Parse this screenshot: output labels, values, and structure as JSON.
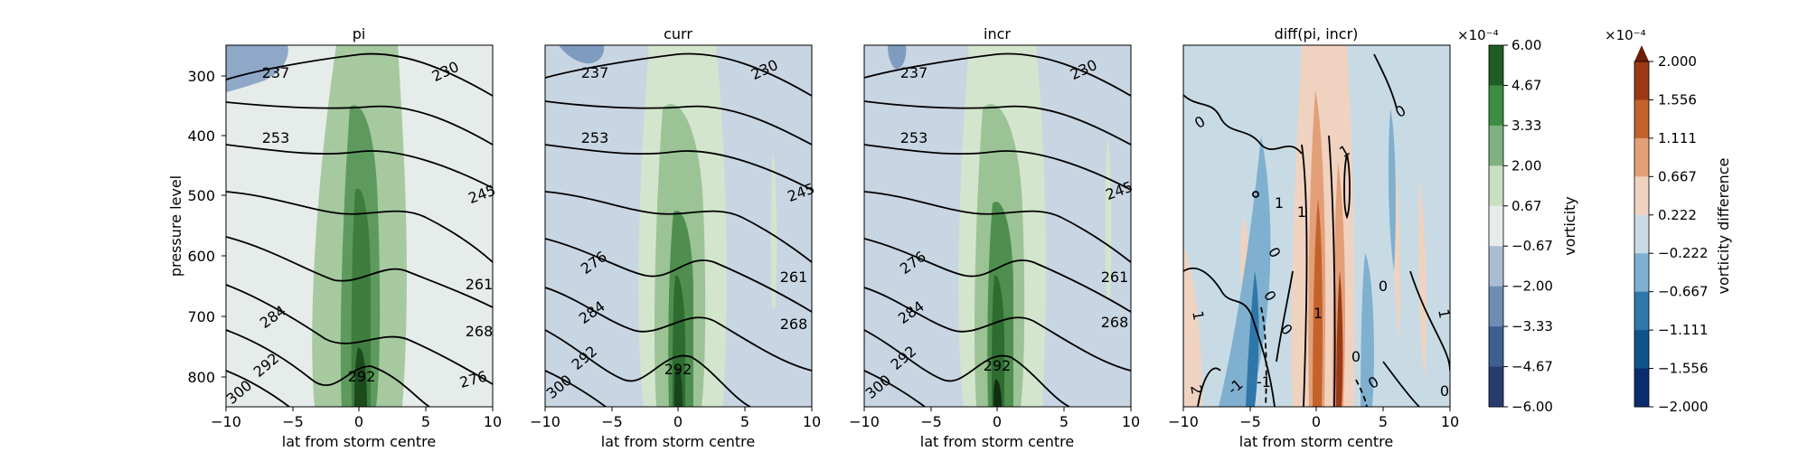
{
  "chart_data": [
    {
      "type": "contour",
      "title": "pi",
      "xlabel": "lat from storm centre",
      "ylabel": "pressure level",
      "xlim": [
        -10,
        10
      ],
      "ylim": [
        850,
        250
      ],
      "x_ticks": [
        "−10",
        "−5",
        "0",
        "5",
        "10"
      ],
      "y_ticks": [
        "300",
        "400",
        "500",
        "600",
        "700",
        "800"
      ],
      "background_level": "-0.67 to 0.67",
      "contour_labels": [
        "237",
        "230",
        "253",
        "245",
        "261",
        "276",
        "268",
        "284",
        "292",
        "300",
        "292",
        "276"
      ]
    },
    {
      "type": "contour",
      "title": "curr",
      "xlabel": "lat from storm centre",
      "xlim": [
        -10,
        10
      ],
      "ylim": [
        850,
        250
      ],
      "x_ticks": [
        "−10",
        "−5",
        "0",
        "5",
        "10"
      ],
      "background_level": "-2.00 to -0.67",
      "contour_labels": [
        "237",
        "230",
        "253",
        "245",
        "261",
        "276",
        "268",
        "284",
        "292",
        "300",
        "292"
      ]
    },
    {
      "type": "contour",
      "title": "incr",
      "xlabel": "lat from storm centre",
      "xlim": [
        -10,
        10
      ],
      "ylim": [
        850,
        250
      ],
      "x_ticks": [
        "−10",
        "−5",
        "0",
        "5",
        "10"
      ],
      "background_level": "-2.00 to -0.67",
      "contour_labels": [
        "237",
        "230",
        "253",
        "245",
        "261",
        "276",
        "268",
        "284",
        "292",
        "300",
        "292"
      ]
    },
    {
      "type": "contour",
      "title": "diff(pi, incr)",
      "xlabel": "lat from storm centre",
      "xlim": [
        -10,
        10
      ],
      "ylim": [
        850,
        250
      ],
      "x_ticks": [
        "−10",
        "−5",
        "0",
        "5",
        "10"
      ],
      "contour_labels": [
        "0",
        "0",
        "1",
        "0",
        "1",
        "1",
        "0",
        "0",
        "0",
        "0",
        "1",
        "-1",
        "-1",
        "0",
        "0",
        "2",
        "1",
        "1"
      ]
    }
  ],
  "colorbars": {
    "vorticity": {
      "label": "vorticity",
      "exponent": "×10⁻⁴",
      "ticks": [
        "6.00",
        "4.67",
        "3.33",
        "2.00",
        "0.67",
        "−0.67",
        "−2.00",
        "−3.33",
        "−4.67",
        "−6.00"
      ],
      "colors": [
        "#0b2a0b",
        "#1f5e22",
        "#3d8c43",
        "#7fb07f",
        "#c8dfc0",
        "#e6ecea",
        "#a9bcd2",
        "#6e8db3",
        "#3e5f91",
        "#283c70",
        "#2b2556"
      ]
    },
    "difference": {
      "label": "vorticity difference",
      "exponent": "×10⁻⁴",
      "ticks": [
        "2.000",
        "1.556",
        "1.111",
        "0.667",
        "0.222",
        "−0.222",
        "−0.667",
        "−1.111",
        "−1.556",
        "−2.000"
      ],
      "colors": [
        "#6b1e08",
        "#9c3814",
        "#c4622c",
        "#e39f78",
        "#f0d2c0",
        "#c8dbe5",
        "#7fb0cf",
        "#2f77a9",
        "#10528a",
        "#0a2d6e",
        "#081a56"
      ]
    }
  }
}
